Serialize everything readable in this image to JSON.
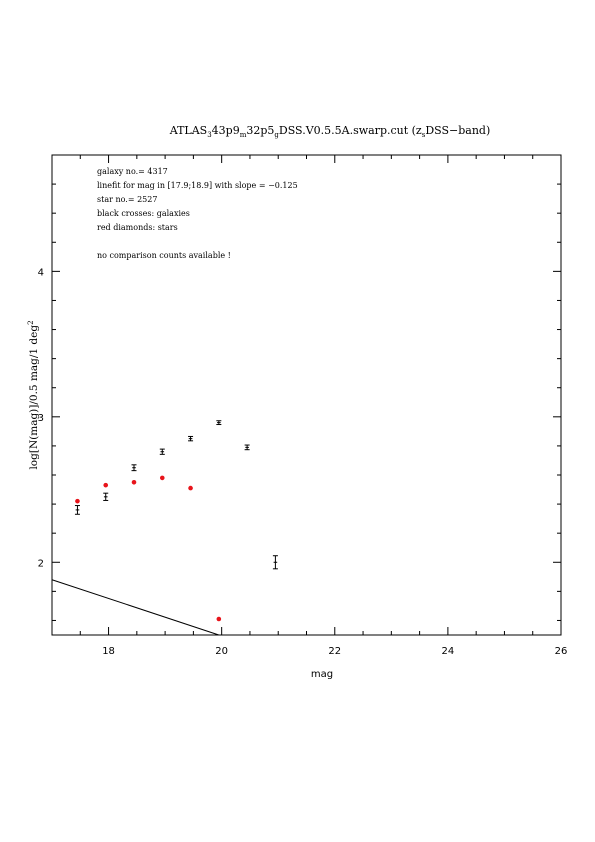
{
  "chart_data": {
    "type": "scatter",
    "title": "ATLAS_343p9_m32p5_gDSS.V0.5.5A.swarp.cut (z_sDSS-band)",
    "title_parts": {
      "a": "ATLAS",
      "s1": "3",
      "b": "43p9",
      "s2": "m",
      "c": "32p5",
      "s3": "g",
      "d": "DSS.V0.5.5A.swarp.cut (z",
      "s4": "s",
      "e": "DSS−band)"
    },
    "xlabel": "mag",
    "ylabel": "log[N(mag)]/0.5 mag/1 deg",
    "ylabel_sup": "2",
    "xlim": [
      17,
      26
    ],
    "ylim": [
      1.5,
      4.8
    ],
    "x_ticks": [
      18,
      20,
      22,
      24,
      26
    ],
    "y_ticks": [
      2,
      3,
      4
    ],
    "annotations": [
      "galaxy no.= 4317",
      "linefit for mag in [17.9;18.9] with slope = −0.125",
      "star no.= 2527",
      "black crosses: galaxies",
      "red diamonds: stars",
      "",
      "no comparison counts available !"
    ],
    "series": [
      {
        "marker": "errorbar",
        "color": "#000000",
        "points": [
          {
            "x": 17.45,
            "y": 2.36,
            "err": 0.03
          },
          {
            "x": 17.95,
            "y": 2.45,
            "err": 0.025
          },
          {
            "x": 18.45,
            "y": 2.65,
            "err": 0.02
          },
          {
            "x": 18.95,
            "y": 2.76,
            "err": 0.018
          },
          {
            "x": 19.45,
            "y": 2.85,
            "err": 0.015
          },
          {
            "x": 19.95,
            "y": 2.96,
            "err": 0.013
          },
          {
            "x": 20.45,
            "y": 2.79,
            "err": 0.016
          },
          {
            "x": 20.95,
            "y": 2.0,
            "err": 0.045
          }
        ]
      },
      {
        "marker": "dot",
        "color": "#e8141b",
        "points": [
          {
            "x": 17.45,
            "y": 2.42
          },
          {
            "x": 17.95,
            "y": 2.53
          },
          {
            "x": 18.45,
            "y": 2.55
          },
          {
            "x": 18.95,
            "y": 2.58
          },
          {
            "x": 19.45,
            "y": 2.51
          },
          {
            "x": 19.95,
            "y": 1.61
          }
        ]
      }
    ],
    "fit_line": {
      "x": [
        17,
        19.95
      ],
      "y": [
        1.88,
        1.5
      ],
      "color": "#000000"
    }
  }
}
